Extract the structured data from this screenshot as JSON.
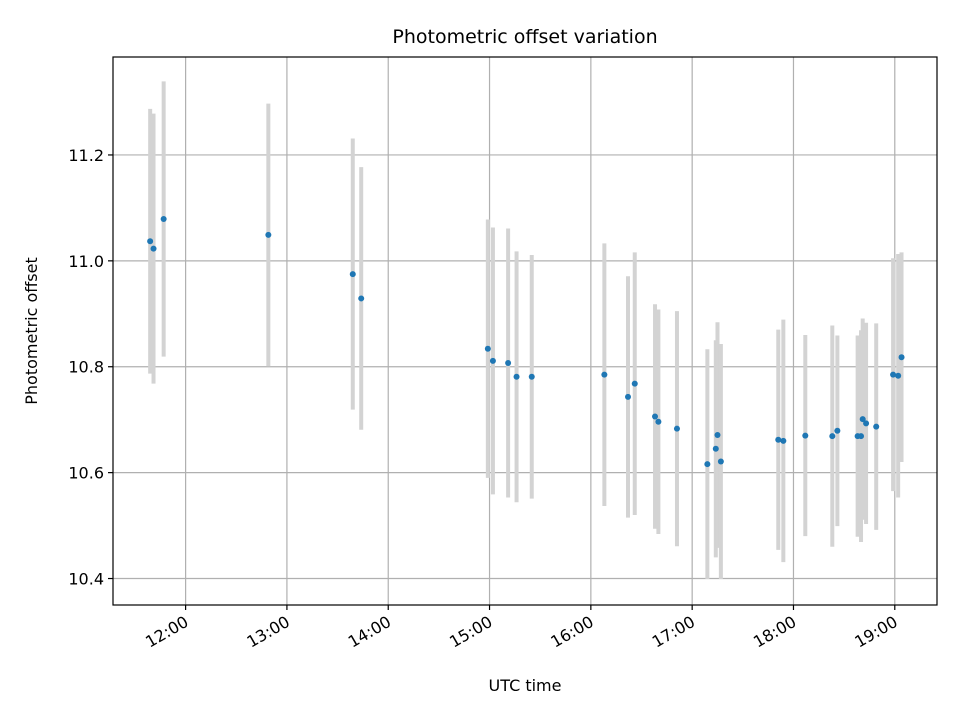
{
  "chart_data": {
    "type": "scatter",
    "title": "Photometric offset variation",
    "xlabel": "UTC time",
    "ylabel": "Photometric offset",
    "x_axis_type": "time",
    "xlim": [
      "11:17",
      "19:25"
    ],
    "ylim": [
      10.35,
      11.385
    ],
    "x_ticks": [
      "12:00",
      "13:00",
      "14:00",
      "15:00",
      "16:00",
      "17:00",
      "18:00",
      "19:00"
    ],
    "y_ticks": [
      "10.4",
      "10.6",
      "10.8",
      "11.0",
      "11.2"
    ],
    "grid": true,
    "legend": "none",
    "colors": {
      "marker": "#1f77b4",
      "errorbar": "#d3d3d3",
      "grid": "#b0b0b0"
    },
    "series": [
      {
        "points": [
          {
            "x": "11:39",
            "y": 11.037,
            "err": 0.25
          },
          {
            "x": "11:41",
            "y": 11.023,
            "err": 0.255
          },
          {
            "x": "11:47",
            "y": 11.079,
            "err": 0.26
          },
          {
            "x": "12:49",
            "y": 11.049,
            "err": 0.248
          },
          {
            "x": "13:39",
            "y": 10.975,
            "err": 0.256
          },
          {
            "x": "13:44",
            "y": 10.929,
            "err": 0.248
          },
          {
            "x": "14:59",
            "y": 10.834,
            "err": 0.244
          },
          {
            "x": "15:02",
            "y": 10.811,
            "err": 0.252
          },
          {
            "x": "15:11",
            "y": 10.807,
            "err": 0.254
          },
          {
            "x": "15:16",
            "y": 10.781,
            "err": 0.237
          },
          {
            "x": "15:25",
            "y": 10.781,
            "err": 0.23
          },
          {
            "x": "16:08",
            "y": 10.785,
            "err": 0.248
          },
          {
            "x": "16:22",
            "y": 10.743,
            "err": 0.228
          },
          {
            "x": "16:26",
            "y": 10.768,
            "err": 0.248
          },
          {
            "x": "16:38",
            "y": 10.706,
            "err": 0.212
          },
          {
            "x": "16:40",
            "y": 10.696,
            "err": 0.212
          },
          {
            "x": "16:51",
            "y": 10.683,
            "err": 0.222
          },
          {
            "x": "17:09",
            "y": 10.616,
            "err": 0.217
          },
          {
            "x": "17:14",
            "y": 10.645,
            "err": 0.205
          },
          {
            "x": "17:15",
            "y": 10.671,
            "err": 0.213
          },
          {
            "x": "17:17",
            "y": 10.621,
            "err": 0.222
          },
          {
            "x": "17:51",
            "y": 10.662,
            "err": 0.208
          },
          {
            "x": "17:54",
            "y": 10.66,
            "err": 0.229
          },
          {
            "x": "18:07",
            "y": 10.67,
            "err": 0.19
          },
          {
            "x": "18:23",
            "y": 10.669,
            "err": 0.209
          },
          {
            "x": "18:26",
            "y": 10.679,
            "err": 0.18
          },
          {
            "x": "18:38",
            "y": 10.669,
            "err": 0.19
          },
          {
            "x": "18:40",
            "y": 10.669,
            "err": 0.2
          },
          {
            "x": "18:41",
            "y": 10.701,
            "err": 0.19
          },
          {
            "x": "18:43",
            "y": 10.693,
            "err": 0.19
          },
          {
            "x": "18:49",
            "y": 10.687,
            "err": 0.195
          },
          {
            "x": "18:59",
            "y": 10.785,
            "err": 0.22
          },
          {
            "x": "19:02",
            "y": 10.783,
            "err": 0.23
          },
          {
            "x": "19:04",
            "y": 10.818,
            "err": 0.198
          }
        ]
      }
    ]
  }
}
